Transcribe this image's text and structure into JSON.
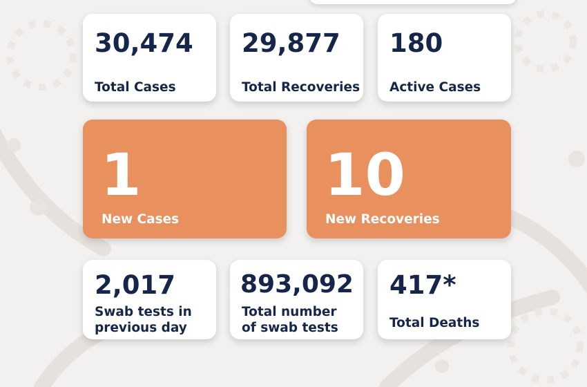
{
  "stats": {
    "total_cases": {
      "value": "30,474",
      "label": "Total Cases"
    },
    "total_recoveries": {
      "value": "29,877",
      "label": "Total Recoveries"
    },
    "active_cases": {
      "value": "180",
      "label": "Active Cases"
    },
    "new_cases": {
      "value": "1",
      "label": "New Cases"
    },
    "new_recoveries": {
      "value": "10",
      "label": "New Recoveries"
    },
    "swab_tests_previous_day": {
      "value": "2,017",
      "label": "Swab tests in previous day"
    },
    "total_swab_tests": {
      "value": "893,092",
      "label": "Total number of swab tests"
    },
    "total_deaths": {
      "value": "417*",
      "label": "Total Deaths"
    }
  },
  "colors": {
    "background": "#f3f1ef",
    "card": "#ffffff",
    "accent": "#e8905e",
    "text_dark": "#15264a",
    "text_light": "#ffffff"
  }
}
